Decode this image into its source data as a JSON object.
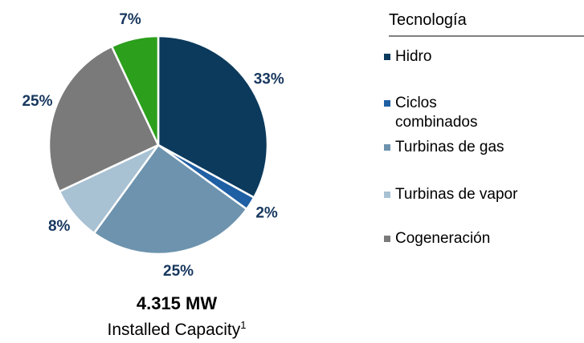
{
  "chart_data": {
    "type": "pie",
    "categories": [
      "Hidro",
      "Ciclos\ncombinados",
      "Turbinas de gas",
      "Turbinas de vapor",
      "Cogeneración",
      null
    ],
    "values": [
      33,
      2,
      25,
      8,
      25,
      7
    ],
    "value_labels": [
      "33%",
      "2%",
      "25%",
      "8%",
      "25%",
      "7%"
    ],
    "colors": [
      "#0b3a5d",
      "#1f5fa3",
      "#6d93ae",
      "#a8c1d3",
      "#7a7a7a",
      "#2c9f1d"
    ],
    "legend_title": "Tecnología",
    "total": "4.315 MW",
    "subtitle": "Installed Capacity",
    "subtitle_superscript": "1"
  }
}
